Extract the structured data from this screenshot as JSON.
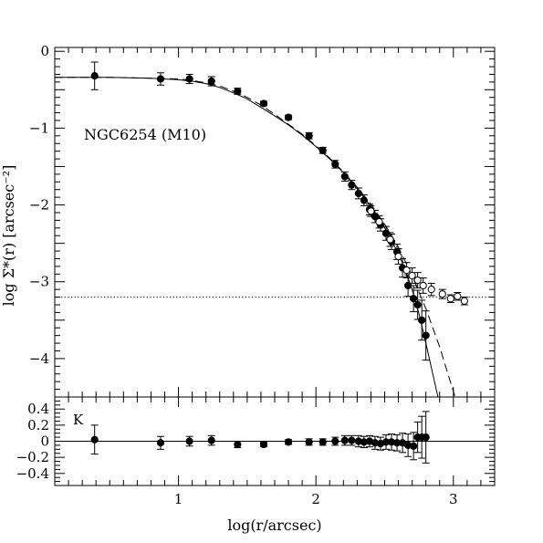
{
  "chart_data": [
    {
      "type": "scatter",
      "panel": "top",
      "title": "",
      "annotation": "NGC6254 (M10)",
      "xlabel": "log(r/arcsec)",
      "ylabel": "log Σ*(r) [arcsec⁻²]",
      "xlim": [
        0.1,
        3.3
      ],
      "ylim": [
        -4.5,
        0.05
      ],
      "x_ticks": [
        1,
        2,
        3
      ],
      "y_ticks": [
        0,
        -1,
        -2,
        -3,
        -4
      ],
      "y_tick_labels": [
        "0",
        "−1",
        "−2",
        "−3",
        "−4"
      ],
      "background_level": -3.2,
      "series": [
        {
          "marker": "filled",
          "x": [
            0.39,
            0.87,
            1.08,
            1.24,
            1.43,
            1.62,
            1.8,
            1.95,
            2.05,
            2.14,
            2.21,
            2.26,
            2.31,
            2.35,
            2.39,
            2.43,
            2.47,
            2.51,
            2.55,
            2.59,
            2.63,
            2.67,
            2.71,
            2.74,
            2.77,
            2.8
          ],
          "y": [
            -0.32,
            -0.36,
            -0.36,
            -0.39,
            -0.52,
            -0.68,
            -0.86,
            -1.1,
            -1.29,
            -1.47,
            -1.63,
            -1.74,
            -1.85,
            -1.94,
            -2.06,
            -2.15,
            -2.26,
            -2.37,
            -2.48,
            -2.61,
            -2.82,
            -3.05,
            -3.22,
            -3.3,
            -3.5,
            -3.7
          ],
          "yerr": [
            0.18,
            0.08,
            0.06,
            0.06,
            0.04,
            0.03,
            0.03,
            0.04,
            0.04,
            0.05,
            0.06,
            0.06,
            0.07,
            0.07,
            0.07,
            0.08,
            0.08,
            0.09,
            0.1,
            0.1,
            0.12,
            0.14,
            0.17,
            0.19,
            0.26,
            0.32
          ]
        },
        {
          "marker": "open",
          "x": [
            2.4,
            2.46,
            2.54,
            2.6,
            2.66,
            2.7,
            2.74,
            2.78,
            2.84,
            2.92,
            2.98,
            3.03,
            3.08
          ],
          "y": [
            -2.08,
            -2.22,
            -2.45,
            -2.67,
            -2.85,
            -2.92,
            -2.98,
            -3.05,
            -3.1,
            -3.16,
            -3.22,
            -3.19,
            -3.25
          ],
          "yerr": [
            0.07,
            0.08,
            0.09,
            0.1,
            0.1,
            0.1,
            0.1,
            0.1,
            0.08,
            0.06,
            0.05,
            0.05,
            0.05
          ]
        }
      ],
      "fits": [
        {
          "line": "solid",
          "x": [
            0.1,
            0.5,
            0.8,
            1.0,
            1.1,
            1.2,
            1.3,
            1.4,
            1.5,
            1.6,
            1.7,
            1.8,
            1.9,
            2.0,
            2.1,
            2.2,
            2.3,
            2.4,
            2.5,
            2.6,
            2.65,
            2.7,
            2.75,
            2.8,
            2.85,
            2.9
          ],
          "y": [
            -0.34,
            -0.34,
            -0.35,
            -0.37,
            -0.39,
            -0.42,
            -0.47,
            -0.54,
            -0.62,
            -0.73,
            -0.84,
            -0.96,
            -1.09,
            -1.24,
            -1.4,
            -1.58,
            -1.79,
            -2.02,
            -2.3,
            -2.63,
            -2.85,
            -3.1,
            -3.42,
            -3.8,
            -4.2,
            -4.6
          ]
        },
        {
          "line": "dashed",
          "x": [
            0.1,
            0.5,
            0.8,
            1.0,
            1.1,
            1.2,
            1.3,
            1.4,
            1.5,
            1.6,
            1.7,
            1.8,
            1.9,
            2.0,
            2.1,
            2.2,
            2.3,
            2.4,
            2.5,
            2.6,
            2.7,
            2.8,
            2.9,
            2.96,
            3.03
          ],
          "y": [
            -0.34,
            -0.34,
            -0.35,
            -0.36,
            -0.38,
            -0.41,
            -0.45,
            -0.52,
            -0.6,
            -0.7,
            -0.82,
            -0.95,
            -1.08,
            -1.23,
            -1.39,
            -1.57,
            -1.77,
            -1.99,
            -2.25,
            -2.55,
            -2.92,
            -3.35,
            -3.85,
            -4.2,
            -4.6
          ]
        }
      ]
    },
    {
      "type": "scatter",
      "panel": "bottom",
      "annotation": "K",
      "xlabel": "log(r/arcsec)",
      "ylabel": "",
      "xlim": [
        0.1,
        3.3
      ],
      "ylim": [
        -0.55,
        0.55
      ],
      "x_ticks": [
        1,
        2,
        3
      ],
      "x_tick_labels": [
        "1",
        "2",
        "3"
      ],
      "y_ticks": [
        0.4,
        0.2,
        0,
        -0.2,
        -0.4
      ],
      "y_tick_labels": [
        "0.4",
        "0.2",
        "0",
        "−0.2",
        "−0.4"
      ],
      "reference_level": 0,
      "series": [
        {
          "marker": "filled",
          "x": [
            0.39,
            0.87,
            1.08,
            1.24,
            1.43,
            1.62,
            1.8,
            1.95,
            2.05,
            2.14,
            2.21,
            2.26,
            2.31,
            2.35,
            2.39,
            2.43,
            2.47,
            2.51,
            2.55,
            2.59,
            2.63,
            2.67,
            2.71,
            2.74,
            2.77,
            2.8
          ],
          "y": [
            0.02,
            -0.02,
            0.0,
            0.01,
            -0.04,
            -0.04,
            -0.01,
            -0.01,
            -0.01,
            0.0,
            0.01,
            0.01,
            0.0,
            -0.01,
            0.0,
            -0.02,
            -0.03,
            -0.01,
            -0.01,
            -0.02,
            -0.02,
            -0.05,
            -0.06,
            0.05,
            0.05,
            0.05
          ],
          "yerr": [
            0.18,
            0.08,
            0.06,
            0.06,
            0.04,
            0.03,
            0.03,
            0.04,
            0.04,
            0.05,
            0.06,
            0.06,
            0.07,
            0.07,
            0.07,
            0.08,
            0.08,
            0.09,
            0.1,
            0.1,
            0.12,
            0.14,
            0.17,
            0.19,
            0.26,
            0.32
          ]
        }
      ]
    }
  ]
}
